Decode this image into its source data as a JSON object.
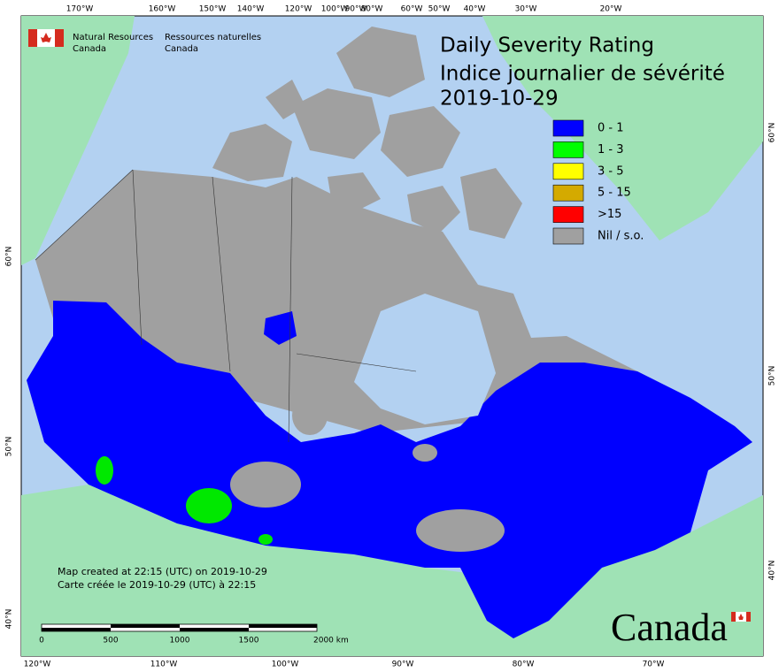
{
  "header": {
    "agency_en": [
      "Natural Resources",
      "Canada"
    ],
    "agency_fr": [
      "Ressources naturelles",
      "Canada"
    ],
    "title": [
      "Daily Severity Rating",
      "Indice journalier de sévérité",
      "2019-10-29"
    ]
  },
  "legend": [
    {
      "label": "0 - 1",
      "color": "#0000ff"
    },
    {
      "label": "1 - 3",
      "color": "#00ff00"
    },
    {
      "label": "3 - 5",
      "color": "#ffff00"
    },
    {
      "label": "5 - 15",
      "color": "#d4aa00"
    },
    {
      "label": ">15",
      "color": "#ff0000"
    },
    {
      "label": "Nil / s.o.",
      "color": "#a0a0a0"
    }
  ],
  "graticule": {
    "top": [
      "170°W",
      "160°W",
      "150°W",
      "140°W",
      "120°W",
      "100°W",
      "90°W",
      "80°W",
      "60°W",
      "50°W",
      "40°W",
      "30°W",
      "20°W"
    ],
    "bottom": [
      "120°W",
      "110°W",
      "100°W",
      "90°W",
      "80°W",
      "70°W"
    ],
    "left": [
      "60°N",
      "50°N",
      "40°N"
    ],
    "right": [
      "60°N",
      "50°N",
      "40°N"
    ]
  },
  "credits": [
    "Map created at 22:15 (UTC) on 2019-10-29",
    "Carte créée le 2019-10-29 (UTC) à 22:15"
  ],
  "scale_bar": [
    "0",
    "500",
    "1000",
    "1500",
    "2000 km"
  ],
  "wordmark": "Canada"
}
